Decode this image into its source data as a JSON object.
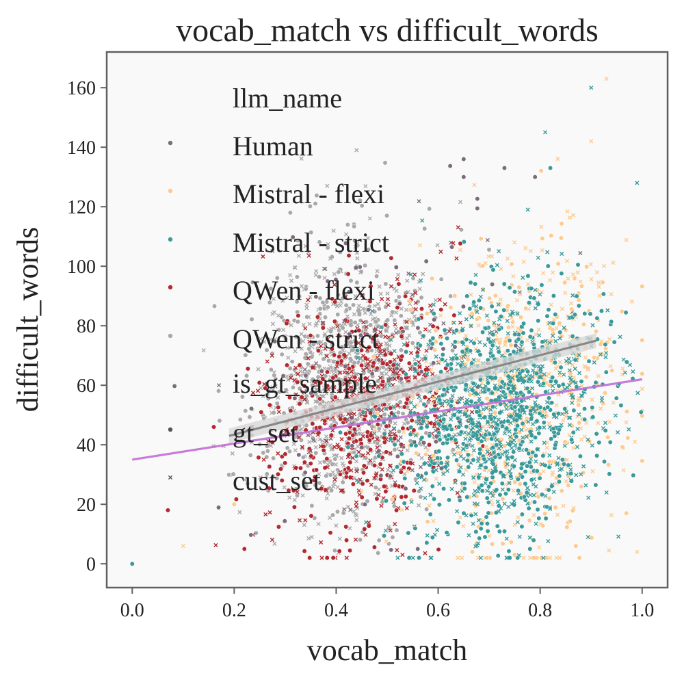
{
  "chart_data": {
    "type": "scatter",
    "title": "vocab_match vs difficult_words",
    "xlabel": "vocab_match",
    "ylabel": "difficult_words",
    "xlim": [
      -0.05,
      1.05
    ],
    "ylim": [
      -8,
      172
    ],
    "xticks": [
      0.0,
      0.2,
      0.4,
      0.6,
      0.8,
      1.0
    ],
    "xtick_labels": [
      "0.0",
      "0.2",
      "0.4",
      "0.6",
      "0.8",
      "1.0"
    ],
    "yticks": [
      0,
      20,
      40,
      60,
      80,
      100,
      120,
      140,
      160
    ],
    "ytick_labels": [
      "0",
      "20",
      "40",
      "60",
      "80",
      "100",
      "120",
      "140",
      "160"
    ],
    "grid": false,
    "legend": {
      "position": "upper-left",
      "hue_title": "llm_name",
      "style_title": "is_gt_sample",
      "hue_entries": [
        {
          "label": "Human",
          "color": "#7d6b7d"
        },
        {
          "label": "Mistral - flexi",
          "color": "#fdcb8f"
        },
        {
          "label": "Mistral - strict",
          "color": "#3a9a9a"
        },
        {
          "label": "QWen - flexi",
          "color": "#b2292f"
        },
        {
          "label": "QWen - strict",
          "color": "#a9a9a9"
        }
      ],
      "style_entries": [
        {
          "label": "gt_set",
          "marker": "circle",
          "color": "#555555"
        },
        {
          "label": "cust_set",
          "marker": "x",
          "color": "#555555"
        }
      ]
    },
    "series": [
      {
        "name": "QWen - strict",
        "color": "#a9a9a9",
        "center": [
          0.42,
          62
        ],
        "spread": [
          0.09,
          22
        ],
        "count": 1100
      },
      {
        "name": "QWen - flexi",
        "color": "#b2292f",
        "center": [
          0.46,
          52
        ],
        "spread": [
          0.1,
          20
        ],
        "count": 650
      },
      {
        "name": "Human",
        "color": "#7d6b7d",
        "center": [
          0.5,
          60
        ],
        "spread": [
          0.13,
          26
        ],
        "count": 160
      },
      {
        "name": "Mistral - flexi",
        "color": "#fdcb8f",
        "center": [
          0.76,
          55
        ],
        "spread": [
          0.1,
          25
        ],
        "count": 700
      },
      {
        "name": "Mistral - strict",
        "color": "#3a9a9a",
        "center": [
          0.72,
          52
        ],
        "spread": [
          0.1,
          20
        ],
        "count": 1250
      }
    ],
    "outliers": [
      {
        "x": 0.0,
        "y": 0,
        "series": "Mistral - strict",
        "marker": "circle"
      },
      {
        "x": 0.07,
        "y": 18,
        "series": "QWen - flexi",
        "marker": "circle"
      },
      {
        "x": 0.16,
        "y": 46,
        "series": "QWen - flexi",
        "marker": "circle"
      },
      {
        "x": 0.17,
        "y": 60,
        "series": "Human",
        "marker": "x"
      },
      {
        "x": 0.2,
        "y": 20,
        "series": "Mistral - flexi",
        "marker": "circle"
      },
      {
        "x": 0.9,
        "y": 160,
        "series": "Mistral - strict",
        "marker": "x"
      },
      {
        "x": 0.93,
        "y": 163,
        "series": "Mistral - flexi",
        "marker": "x"
      },
      {
        "x": 0.81,
        "y": 145,
        "series": "Mistral - strict",
        "marker": "x"
      },
      {
        "x": 0.65,
        "y": 136,
        "series": "Human",
        "marker": "circle"
      },
      {
        "x": 0.65,
        "y": 130,
        "series": "Human",
        "marker": "circle"
      },
      {
        "x": 0.73,
        "y": 133,
        "series": "Human",
        "marker": "circle"
      },
      {
        "x": 0.82,
        "y": 133,
        "series": "Mistral - strict",
        "marker": "circle"
      },
      {
        "x": 0.79,
        "y": 130,
        "series": "Human",
        "marker": "circle"
      },
      {
        "x": 0.99,
        "y": 128,
        "series": "Mistral - strict",
        "marker": "x"
      },
      {
        "x": 0.9,
        "y": 142,
        "series": "Mistral - flexi",
        "marker": "x"
      },
      {
        "x": 0.44,
        "y": 139,
        "series": "QWen - strict",
        "marker": "x"
      },
      {
        "x": 0.31,
        "y": 118,
        "series": "QWen - strict",
        "marker": "circle"
      },
      {
        "x": 0.78,
        "y": 5,
        "series": "Mistral - strict",
        "marker": "circle"
      },
      {
        "x": 0.87,
        "y": 6,
        "series": "Mistral - flexi",
        "marker": "circle"
      },
      {
        "x": 0.99,
        "y": 4,
        "series": "Mistral - flexi",
        "marker": "x"
      },
      {
        "x": 0.53,
        "y": 3,
        "series": "QWen - flexi",
        "marker": "x"
      },
      {
        "x": 0.75,
        "y": 3,
        "series": "Mistral - flexi",
        "marker": "circle"
      },
      {
        "x": 0.1,
        "y": 6,
        "series": "Mistral - flexi",
        "marker": "x"
      },
      {
        "x": 0.22,
        "y": 5,
        "series": "QWen - flexi",
        "marker": "circle"
      }
    ],
    "regression_lines": [
      {
        "name": "QWen - strict trend",
        "color": "#7f7f7f",
        "x": [
          0.19,
          0.91
        ],
        "y": [
          43,
          75
        ],
        "ci": 2.5
      },
      {
        "name": "overall trend",
        "color": "#c26fd6",
        "x": [
          0.0,
          1.0
        ],
        "y": [
          35,
          62
        ],
        "ci": 0
      }
    ]
  }
}
